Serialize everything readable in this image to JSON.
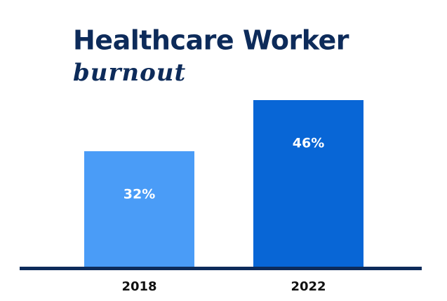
{
  "chart_data": {
    "type": "bar",
    "title": "Healthcare Worker",
    "subtitle": "burnout",
    "categories": [
      "2018",
      "2022"
    ],
    "values": [
      32,
      46
    ],
    "value_labels": [
      "32%",
      "46%"
    ],
    "colors": [
      "#4a9cf7",
      "#0866d6"
    ]
  }
}
